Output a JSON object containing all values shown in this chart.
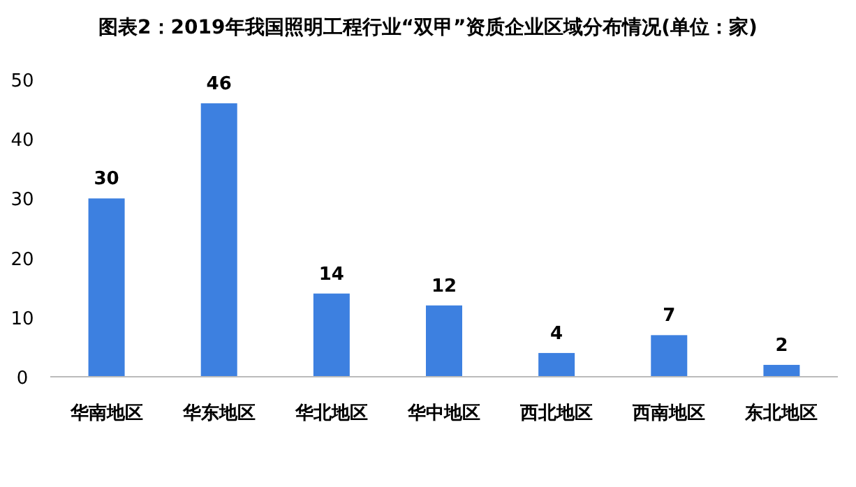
{
  "chart_data": {
    "type": "bar",
    "title": "图表2：2019年我国照明工程行业“双甲”资质企业区域分布情况(单位：家)",
    "categories": [
      "华南地区",
      "华东地区",
      "华北地区",
      "华中地区",
      "西北地区",
      "西南地区",
      "东北地区"
    ],
    "values": [
      30,
      46,
      14,
      12,
      4,
      7,
      2
    ],
    "color": "#3d80e0",
    "ylim": [
      0,
      50
    ],
    "yticks": [
      0,
      10,
      20,
      30,
      40,
      50
    ],
    "data_labels": true
  }
}
